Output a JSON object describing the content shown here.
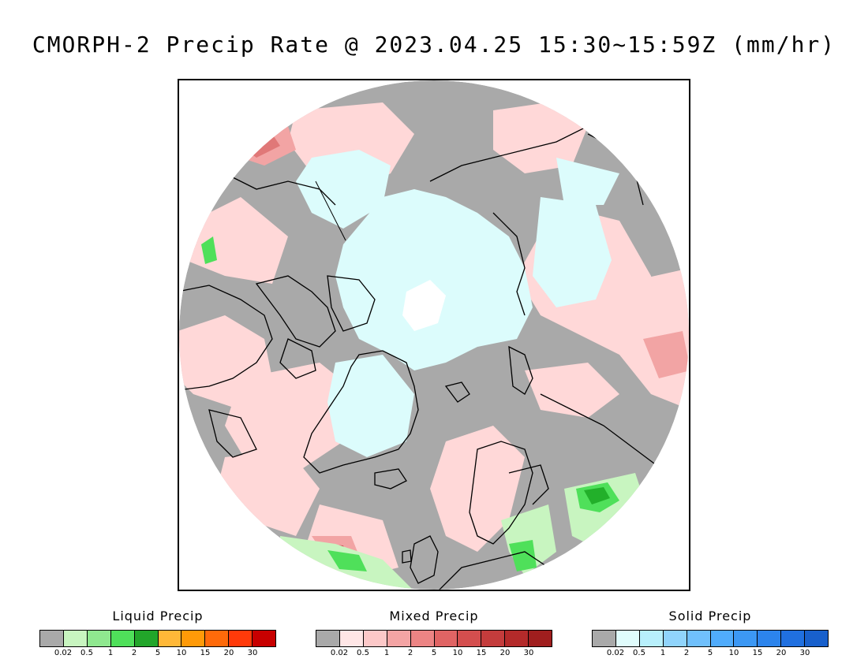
{
  "title": "CMORPH-2 Precip Rate @ 2023.04.25 15:30~15:59Z (mm/hr)",
  "colors": {
    "background_missing": "#a9a9a9",
    "land_outline": "#000000",
    "liquid_light": "#c8f5c0",
    "liquid_medium": "#4fe05a",
    "liquid_heavy": "#22b02a",
    "mixed_light": "#ffd8d8",
    "mixed_medium": "#f4a0a0",
    "mixed_heavy": "#d0505a",
    "solid_light": "#dcfcfc",
    "solid_white": "#ffffff"
  },
  "legends": [
    {
      "id": "liquid",
      "title": "Liquid Precip",
      "colors": [
        "#a9a9a9",
        "#c8f5c0",
        "#8fe88f",
        "#4fe05a",
        "#22a62a",
        "#ffb838",
        "#ff9a08",
        "#ff6a0a",
        "#ff3a0a",
        "#c80000"
      ],
      "ticks": [
        "0.02",
        "0.5",
        "1",
        "2",
        "5",
        "10",
        "15",
        "20",
        "30"
      ]
    },
    {
      "id": "mixed",
      "title": "Mixed Precip",
      "colors": [
        "#a9a9a9",
        "#ffe6e6",
        "#fcc8c8",
        "#f4a4a4",
        "#ec8484",
        "#e06464",
        "#d44e4e",
        "#c43c3c",
        "#b42a2a",
        "#a01e1e"
      ],
      "ticks": [
        "0.02",
        "0.5",
        "1",
        "2",
        "5",
        "10",
        "15",
        "20",
        "30"
      ]
    },
    {
      "id": "solid",
      "title": "Solid Precip",
      "colors": [
        "#a9a9a9",
        "#e0fcfc",
        "#b8f0fc",
        "#90d4fc",
        "#70c0fc",
        "#50acfc",
        "#3c98f4",
        "#2c84ec",
        "#2070e0",
        "#1860cc"
      ],
      "ticks": [
        "0.02",
        "0.5",
        "1",
        "2",
        "5",
        "10",
        "15",
        "20",
        "30"
      ]
    }
  ]
}
